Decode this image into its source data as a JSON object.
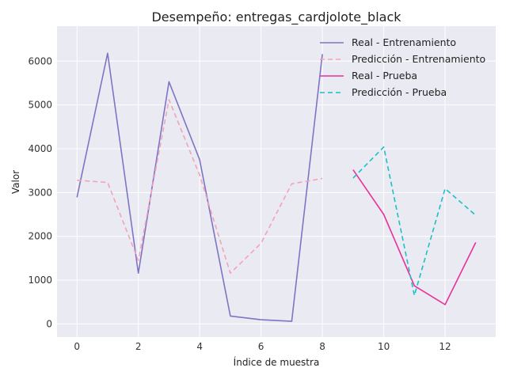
{
  "chart_data": {
    "type": "line",
    "title": "Desempeño: entregas_cardjolote_black",
    "xlabel": "Índice de muestra",
    "ylabel": "Valor",
    "xlim": [
      -0.65,
      13.65
    ],
    "ylim": [
      -300,
      6800
    ],
    "xticks": [
      0,
      2,
      4,
      6,
      8,
      10,
      12
    ],
    "yticks": [
      0,
      1000,
      2000,
      3000,
      4000,
      5000,
      6000
    ],
    "grid": true,
    "legend_position": "top-right",
    "series": [
      {
        "name": "Real - Entrenamiento",
        "style": "solid",
        "color": "#7f74c4",
        "x": [
          0,
          1,
          2,
          3,
          4,
          5,
          6,
          7,
          8
        ],
        "y": [
          2890,
          6180,
          1160,
          5530,
          3750,
          180,
          95,
          60,
          6160
        ]
      },
      {
        "name": "Predicción - Entrenamiento",
        "style": "dashed",
        "color": "#f4a3b7",
        "x": [
          0,
          1,
          2,
          3,
          4,
          5,
          6,
          7,
          8
        ],
        "y": [
          3280,
          3230,
          1450,
          5120,
          3400,
          1160,
          1840,
          3200,
          3320
        ]
      },
      {
        "name": "Real - Prueba",
        "style": "solid",
        "color": "#e8319a",
        "x": [
          9,
          10,
          11,
          12,
          13
        ],
        "y": [
          3520,
          2500,
          870,
          440,
          1860
        ]
      },
      {
        "name": "Predicción - Prueba",
        "style": "dashed",
        "color": "#1bbfc8",
        "x": [
          9,
          10,
          11,
          12,
          13
        ],
        "y": [
          3330,
          4040,
          650,
          3090,
          2480
        ]
      }
    ]
  }
}
